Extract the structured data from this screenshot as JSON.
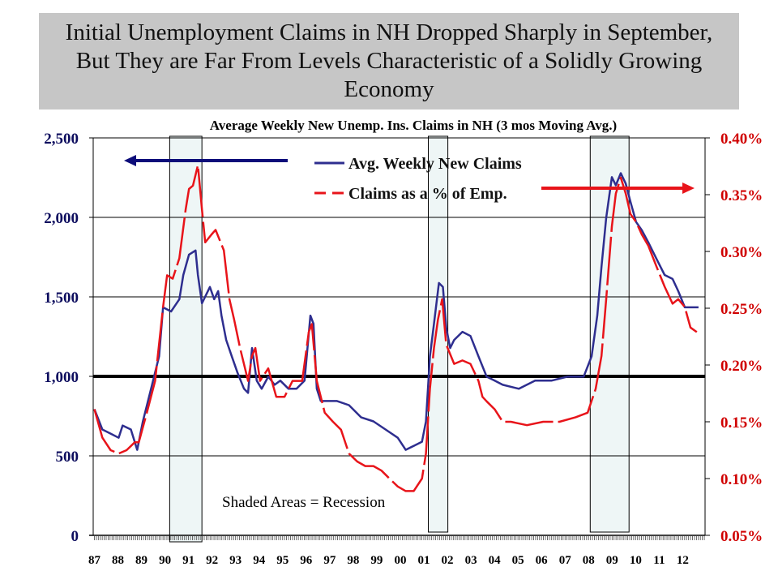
{
  "title": "Initial Unemployment Claims in NH Dropped Sharply in September, But They are Far From Levels Characteristic of a Solidly Growing Economy",
  "chart_data": {
    "type": "line",
    "title": "Average Weekly New Unemp. Ins. Claims in NH (3 mos Moving Avg.)",
    "annotation": "Shaded Areas = Recession",
    "reference_line": 1000,
    "x_tick_labels": [
      "87",
      "88",
      "89",
      "90",
      "91",
      "92",
      "93",
      "94",
      "95",
      "96",
      "97",
      "98",
      "99",
      "00",
      "01",
      "02",
      "03",
      "04",
      "05",
      "06",
      "07",
      "08",
      "09",
      "10",
      "11",
      "12"
    ],
    "xlim": [
      1986.95,
      2012.95
    ],
    "y_left": {
      "ylim": [
        0,
        2500
      ],
      "ticks": [
        0,
        500,
        1000,
        1500,
        2000,
        2500
      ],
      "tick_labels": [
        "0",
        "500",
        "1,000",
        "1,500",
        "2,000",
        "2,500"
      ],
      "color": "#0d0d5e"
    },
    "y_right": {
      "ylim": [
        0.05,
        0.4
      ],
      "ticks": [
        0.05,
        0.1,
        0.15,
        0.2,
        0.25,
        0.3,
        0.35,
        0.4
      ],
      "tick_labels": [
        "0.05%",
        "0.10%",
        "0.15%",
        "0.20%",
        "0.25%",
        "0.30%",
        "0.35%",
        "0.40%"
      ],
      "color": "#d00000"
    },
    "recessions": [
      [
        1990.2,
        1991.57
      ],
      [
        2001.19,
        2002.02
      ],
      [
        2008.07,
        2009.72
      ]
    ],
    "legend": {
      "placement": "top-center"
    },
    "series": [
      {
        "name": "Avg. Weekly New Claims",
        "axis": "left",
        "color": "#2e2e8f",
        "style": "solid",
        "points": [
          [
            1987.0,
            794
          ],
          [
            1987.34,
            666
          ],
          [
            1987.69,
            640
          ],
          [
            1988.03,
            614
          ],
          [
            1988.2,
            691
          ],
          [
            1988.55,
            666
          ],
          [
            1988.82,
            538
          ],
          [
            1989.06,
            717
          ],
          [
            1989.41,
            922
          ],
          [
            1989.75,
            1126
          ],
          [
            1989.92,
            1434
          ],
          [
            1990.26,
            1408
          ],
          [
            1990.61,
            1485
          ],
          [
            1990.78,
            1638
          ],
          [
            1991.02,
            1766
          ],
          [
            1991.3,
            1792
          ],
          [
            1991.4,
            1638
          ],
          [
            1991.57,
            1459
          ],
          [
            1991.91,
            1562
          ],
          [
            1992.09,
            1485
          ],
          [
            1992.26,
            1536
          ],
          [
            1992.4,
            1382
          ],
          [
            1992.6,
            1229
          ],
          [
            1992.84,
            1126
          ],
          [
            1993.08,
            1024
          ],
          [
            1993.36,
            922
          ],
          [
            1993.53,
            896
          ],
          [
            1993.7,
            1178
          ],
          [
            1993.9,
            973
          ],
          [
            1994.11,
            922
          ],
          [
            1994.39,
            998
          ],
          [
            1994.66,
            947
          ],
          [
            1994.9,
            973
          ],
          [
            1995.25,
            922
          ],
          [
            1995.59,
            922
          ],
          [
            1995.93,
            973
          ],
          [
            1996.18,
            1382
          ],
          [
            1996.31,
            1331
          ],
          [
            1996.45,
            922
          ],
          [
            1996.62,
            845
          ],
          [
            1996.97,
            845
          ],
          [
            1997.31,
            845
          ],
          [
            1997.82,
            819
          ],
          [
            1998.34,
            742
          ],
          [
            1998.86,
            717
          ],
          [
            1999.37,
            666
          ],
          [
            1999.89,
            614
          ],
          [
            2000.23,
            538
          ],
          [
            2000.57,
            563
          ],
          [
            2000.92,
            589
          ],
          [
            2001.09,
            717
          ],
          [
            2001.26,
            1126
          ],
          [
            2001.43,
            1331
          ],
          [
            2001.64,
            1587
          ],
          [
            2001.81,
            1562
          ],
          [
            2001.95,
            1306
          ],
          [
            2002.12,
            1178
          ],
          [
            2002.29,
            1229
          ],
          [
            2002.64,
            1280
          ],
          [
            2002.98,
            1254
          ],
          [
            2003.32,
            1126
          ],
          [
            2003.67,
            998
          ],
          [
            2004.01,
            973
          ],
          [
            2004.35,
            947
          ],
          [
            2005.04,
            922
          ],
          [
            2005.73,
            973
          ],
          [
            2006.42,
            973
          ],
          [
            2007.1,
            998
          ],
          [
            2007.79,
            998
          ],
          [
            2008.13,
            1126
          ],
          [
            2008.37,
            1382
          ],
          [
            2008.55,
            1690
          ],
          [
            2008.75,
            1997
          ],
          [
            2008.99,
            2253
          ],
          [
            2009.16,
            2202
          ],
          [
            2009.37,
            2278
          ],
          [
            2009.58,
            2212
          ],
          [
            2009.78,
            2099
          ],
          [
            2010.02,
            1971
          ],
          [
            2010.26,
            1920
          ],
          [
            2010.54,
            1843
          ],
          [
            2010.88,
            1741
          ],
          [
            2011.23,
            1638
          ],
          [
            2011.57,
            1613
          ],
          [
            2011.81,
            1536
          ],
          [
            2012.09,
            1434
          ],
          [
            2012.33,
            1434
          ],
          [
            2012.67,
            1434
          ]
        ]
      },
      {
        "name": "Claims as a % of Emp.",
        "axis": "right",
        "color": "#e8141a",
        "style": "dashed",
        "points": [
          [
            1987.0,
            0.161
          ],
          [
            1987.34,
            0.136
          ],
          [
            1987.69,
            0.125
          ],
          [
            1988.03,
            0.122
          ],
          [
            1988.37,
            0.125
          ],
          [
            1988.72,
            0.132
          ],
          [
            1988.89,
            0.132
          ],
          [
            1989.23,
            0.158
          ],
          [
            1989.58,
            0.186
          ],
          [
            1989.92,
            0.251
          ],
          [
            1990.09,
            0.279
          ],
          [
            1990.33,
            0.276
          ],
          [
            1990.61,
            0.294
          ],
          [
            1990.88,
            0.337
          ],
          [
            1991.02,
            0.355
          ],
          [
            1991.19,
            0.358
          ],
          [
            1991.4,
            0.376
          ],
          [
            1991.57,
            0.337
          ],
          [
            1991.71,
            0.308
          ],
          [
            1991.98,
            0.315
          ],
          [
            1992.15,
            0.319
          ],
          [
            1992.5,
            0.301
          ],
          [
            1992.74,
            0.258
          ],
          [
            1992.94,
            0.24
          ],
          [
            1993.19,
            0.215
          ],
          [
            1993.53,
            0.186
          ],
          [
            1993.7,
            0.208
          ],
          [
            1993.84,
            0.215
          ],
          [
            1994.04,
            0.186
          ],
          [
            1994.39,
            0.197
          ],
          [
            1994.73,
            0.172
          ],
          [
            1995.08,
            0.172
          ],
          [
            1995.42,
            0.186
          ],
          [
            1995.83,
            0.186
          ],
          [
            1996.11,
            0.229
          ],
          [
            1996.24,
            0.236
          ],
          [
            1996.45,
            0.186
          ],
          [
            1996.79,
            0.158
          ],
          [
            1997.14,
            0.15
          ],
          [
            1997.48,
            0.143
          ],
          [
            1997.82,
            0.122
          ],
          [
            1998.17,
            0.115
          ],
          [
            1998.51,
            0.111
          ],
          [
            1998.86,
            0.111
          ],
          [
            1999.2,
            0.107
          ],
          [
            1999.54,
            0.1
          ],
          [
            1999.89,
            0.093
          ],
          [
            2000.23,
            0.089
          ],
          [
            2000.57,
            0.089
          ],
          [
            2000.92,
            0.1
          ],
          [
            2001.09,
            0.122
          ],
          [
            2001.26,
            0.179
          ],
          [
            2001.43,
            0.215
          ],
          [
            2001.6,
            0.24
          ],
          [
            2001.78,
            0.258
          ],
          [
            2001.95,
            0.218
          ],
          [
            2002.29,
            0.201
          ],
          [
            2002.64,
            0.204
          ],
          [
            2002.98,
            0.201
          ],
          [
            2003.32,
            0.186
          ],
          [
            2003.49,
            0.172
          ],
          [
            2003.67,
            0.168
          ],
          [
            2004.01,
            0.161
          ],
          [
            2004.35,
            0.15
          ],
          [
            2004.7,
            0.15
          ],
          [
            2005.38,
            0.147
          ],
          [
            2006.07,
            0.15
          ],
          [
            2006.76,
            0.15
          ],
          [
            2007.45,
            0.154
          ],
          [
            2007.96,
            0.158
          ],
          [
            2008.3,
            0.179
          ],
          [
            2008.55,
            0.208
          ],
          [
            2008.75,
            0.258
          ],
          [
            2008.99,
            0.322
          ],
          [
            2009.16,
            0.351
          ],
          [
            2009.37,
            0.365
          ],
          [
            2009.58,
            0.351
          ],
          [
            2009.78,
            0.333
          ],
          [
            2010.02,
            0.326
          ],
          [
            2010.26,
            0.315
          ],
          [
            2010.54,
            0.305
          ],
          [
            2010.88,
            0.287
          ],
          [
            2011.23,
            0.269
          ],
          [
            2011.57,
            0.254
          ],
          [
            2011.81,
            0.258
          ],
          [
            2012.09,
            0.251
          ],
          [
            2012.33,
            0.233
          ],
          [
            2012.6,
            0.229
          ]
        ]
      }
    ]
  }
}
